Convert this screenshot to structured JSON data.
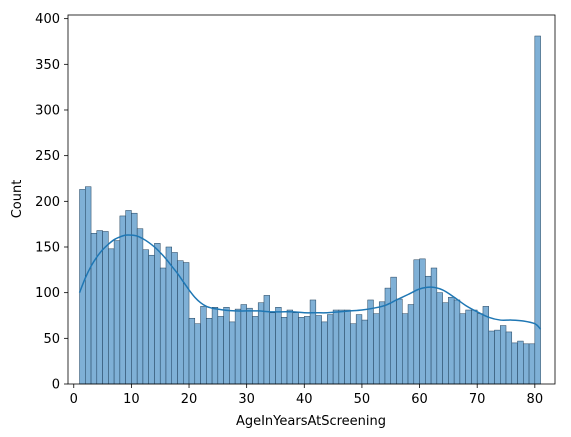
{
  "chart_data": {
    "type": "bar",
    "subtype": "histogram-with-kde",
    "xlabel": "AgeInYearsAtScreening",
    "ylabel": "Count",
    "xlim": [
      -1,
      83.5
    ],
    "ylim": [
      0,
      404
    ],
    "xticks": [
      0,
      10,
      20,
      30,
      40,
      50,
      60,
      70,
      80
    ],
    "yticks": [
      0,
      50,
      100,
      150,
      200,
      250,
      300,
      350,
      400
    ],
    "grid": false,
    "legend": "none",
    "colors": {
      "bar_fill": "#7fb0d6",
      "bar_edge": "#1f3f5a",
      "kde_line": "#1f77b4"
    },
    "bins": {
      "start": 1,
      "width": 1,
      "counts": [
        213,
        216,
        165,
        168,
        167,
        148,
        157,
        184,
        190,
        187,
        170,
        147,
        141,
        154,
        127,
        150,
        144,
        135,
        133,
        72,
        66,
        85,
        72,
        84,
        74,
        84,
        68,
        82,
        87,
        83,
        74,
        89,
        97,
        78,
        84,
        73,
        81,
        78,
        73,
        74,
        92,
        75,
        68,
        76,
        81,
        81,
        81,
        66,
        76,
        70,
        92,
        77,
        90,
        105,
        117,
        93,
        77,
        87,
        136,
        137,
        118,
        127,
        100,
        89,
        95,
        92,
        77,
        81,
        81,
        77,
        85,
        58,
        59,
        64,
        57,
        45,
        47,
        44,
        44,
        381
      ]
    },
    "kde": {
      "x": [
        1,
        2,
        3,
        4,
        5,
        6,
        7,
        8,
        9,
        10,
        11,
        12,
        13,
        14,
        15,
        16,
        17,
        18,
        19,
        20,
        21,
        22,
        23,
        24,
        25,
        26,
        28,
        30,
        32,
        34,
        36,
        38,
        40,
        42,
        44,
        46,
        48,
        50,
        52,
        54,
        56,
        58,
        60,
        62,
        64,
        66,
        68,
        70,
        72,
        74,
        76,
        78,
        80,
        81
      ],
      "y": [
        100,
        116,
        129,
        139,
        147,
        153,
        158,
        161,
        163,
        163,
        162,
        159,
        155,
        150,
        144,
        137,
        129,
        121,
        112,
        103,
        95,
        89,
        85,
        83,
        82,
        81,
        80,
        80,
        80,
        79,
        79,
        79,
        78,
        78,
        78,
        79,
        80,
        81,
        83,
        86,
        92,
        98,
        104,
        106,
        103,
        95,
        86,
        79,
        73,
        70,
        70,
        69,
        66,
        60
      ]
    }
  }
}
